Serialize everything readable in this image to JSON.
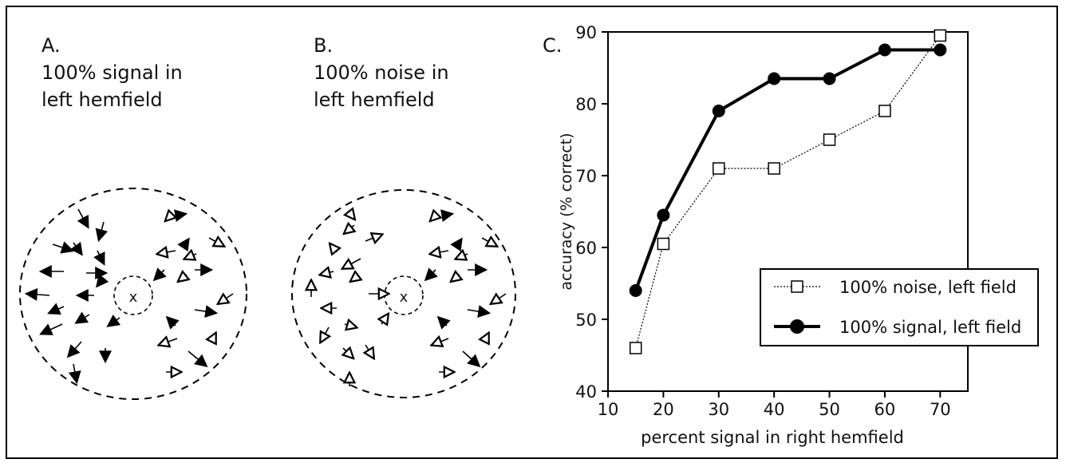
{
  "panels": {
    "a": {
      "letter": "A.",
      "line1": "100% signal in",
      "line2": "left hemfield"
    },
    "b": {
      "letter": "B.",
      "line1": "100% noise in",
      "line2": "left hemfield"
    },
    "c": {
      "letter": "C."
    }
  },
  "center_marker": "x",
  "chart_data": {
    "type": "line",
    "xlabel": "percent signal in right hemfield",
    "ylabel": "accuracy (% correct)",
    "xlim": [
      10,
      75
    ],
    "ylim": [
      40,
      90
    ],
    "xticks": [
      10,
      20,
      30,
      40,
      50,
      60,
      70
    ],
    "yticks": [
      40,
      50,
      60,
      70,
      80,
      90
    ],
    "legend_position": "lower-right",
    "series": [
      {
        "name": "100% noise, left field",
        "marker": "open-square",
        "line": "thin-dotted",
        "color": "#000000",
        "x": [
          15,
          20,
          30,
          40,
          50,
          60,
          70
        ],
        "y": [
          46,
          60.5,
          71,
          71,
          75,
          79,
          89.5
        ]
      },
      {
        "name": "100% signal, left field",
        "marker": "filled-circle",
        "line": "thick-solid",
        "color": "#000000",
        "x": [
          15,
          20,
          30,
          40,
          50,
          60,
          70
        ],
        "y": [
          54,
          64.5,
          79,
          83.5,
          83.5,
          87.5,
          87.5
        ]
      }
    ]
  }
}
